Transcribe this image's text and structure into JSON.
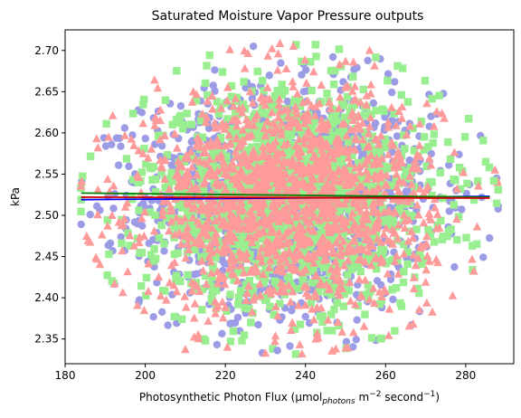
{
  "chart_data": {
    "type": "scatter",
    "title": "Saturated Moisture Vapor Pressure outputs",
    "xlabel": {
      "prefix": "Photosynthetic Photon Flux (µmol",
      "subscript": "photons",
      "middle": " m",
      "sup1": "−2",
      "middle2": " second",
      "sup2": "−1",
      "suffix": ")"
    },
    "ylabel": "kPa",
    "xlim": [
      180,
      292
    ],
    "ylim": [
      2.32,
      2.725
    ],
    "x_ticks": [
      180,
      200,
      220,
      240,
      260,
      280
    ],
    "y_ticks": [
      2.35,
      2.4,
      2.45,
      2.5,
      2.55,
      2.6,
      2.65,
      2.7
    ],
    "grid": false,
    "cloud": {
      "x_mean": 236,
      "x_sd": 18,
      "y_mean": 2.52,
      "y_sd": 0.065,
      "points_per_series": 1500
    },
    "series": [
      {
        "marker": "circle",
        "color": "#9b9be6"
      },
      {
        "marker": "square",
        "color": "#99ee90"
      },
      {
        "marker": "triangle",
        "color": "#ff9a9a"
      }
    ],
    "trend_lines": [
      {
        "color": "#0000ff",
        "x": [
          184,
          286
        ],
        "y": [
          2.519,
          2.523
        ]
      },
      {
        "color": "#008000",
        "x": [
          184,
          286
        ],
        "y": [
          2.527,
          2.522
        ]
      },
      {
        "color": "#cc0000",
        "x": [
          184,
          286
        ],
        "y": [
          2.522,
          2.521
        ]
      }
    ],
    "notable_points": [
      {
        "series": 0,
        "x": 184,
        "y": 2.489
      },
      {
        "series": 1,
        "x": 184,
        "y": 2.519
      },
      {
        "series": 2,
        "x": 210,
        "y": 2.337
      },
      {
        "series": 0,
        "x": 233,
        "y": 2.336
      },
      {
        "series": 0,
        "x": 227,
        "y": 2.705
      },
      {
        "series": 2,
        "x": 237,
        "y": 2.705
      },
      {
        "series": 2,
        "x": 256,
        "y": 2.7
      },
      {
        "series": 1,
        "x": 287,
        "y": 2.542
      },
      {
        "series": 1,
        "x": 285,
        "y": 2.565
      },
      {
        "series": 0,
        "x": 284,
        "y": 2.522
      }
    ]
  }
}
